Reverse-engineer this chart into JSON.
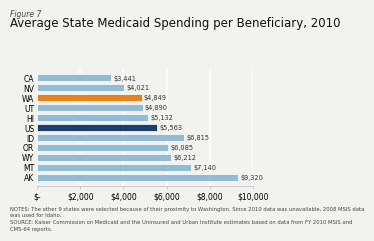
{
  "figure_label": "Figure 7",
  "title": "Average State Medicaid Spending per Beneficiary, 2010",
  "states": [
    "CA",
    "NV",
    "WA",
    "UT",
    "HI",
    "US",
    "ID",
    "OR",
    "WY",
    "MT",
    "AK"
  ],
  "values": [
    3441,
    4021,
    4849,
    4890,
    5132,
    5563,
    6815,
    6085,
    6212,
    7140,
    9320
  ],
  "labels": [
    "$3,441",
    "$4,021",
    "$4,849",
    "$4,890",
    "$5,132",
    "$5,563",
    "$6,815",
    "$6,085",
    "$6,212",
    "$7,140",
    "$9,320"
  ],
  "bar_colors": [
    "#92bcd4",
    "#92bcd4",
    "#e8821e",
    "#92bcd4",
    "#92bcd4",
    "#1a3f6f",
    "#92bcd4",
    "#92bcd4",
    "#92bcd4",
    "#92bcd4",
    "#92bcd4"
  ],
  "xlim": [
    0,
    10000
  ],
  "xtick_values": [
    0,
    2000,
    4000,
    6000,
    8000,
    10000
  ],
  "xtick_labels": [
    "$-",
    "$2,000",
    "$4,000",
    "$6,000",
    "$8,000",
    "$10,000"
  ],
  "notes_line1": "NOTES: The other 9 states were selected because of their proximity to Washington. Since 2010 data was unavailable, 2008 MSIS data",
  "notes_line2": "was used for Idaho.",
  "notes_line3": "SOURCE: Kaiser Commission on Medicaid and the Uninsured and Urban Institute estimates based on data from FY 2010 MSIS and",
  "notes_line4": "CMS-64 reports.",
  "background_color": "#f2f2ee",
  "bar_height": 0.72,
  "label_fontsize": 4.8,
  "title_fontsize": 8.5,
  "figure_label_fontsize": 5.5,
  "notes_fontsize": 3.8,
  "tick_fontsize": 5.5,
  "grid_color": "#ffffff",
  "bar_edge_color": "white"
}
